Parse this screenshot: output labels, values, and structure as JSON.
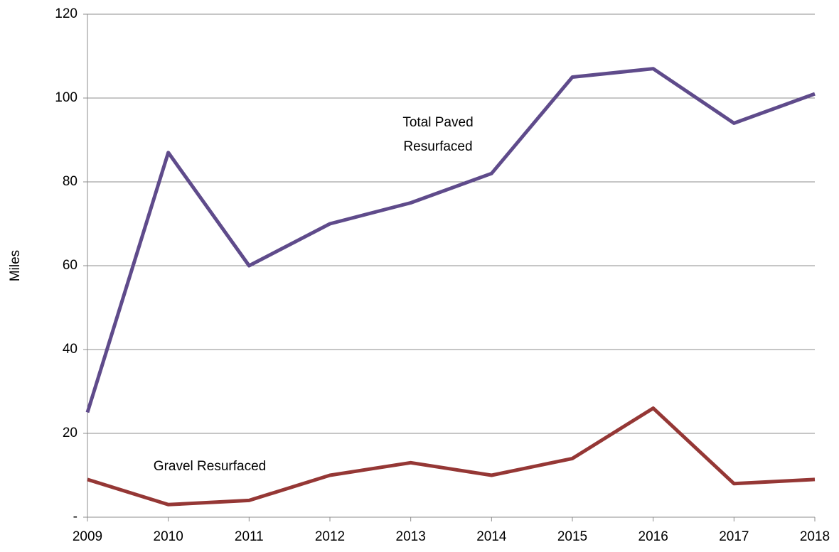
{
  "chart_data": {
    "type": "line",
    "y_label": "Miles",
    "categories": [
      "2009",
      "2010",
      "2011",
      "2012",
      "2013",
      "2014",
      "2015",
      "2016",
      "2017",
      "2018"
    ],
    "series": [
      {
        "name": "Total Paved Resurfaced",
        "color": "#5f4b8b",
        "values": [
          25,
          87,
          60,
          70,
          75,
          82,
          105,
          107,
          94,
          101
        ]
      },
      {
        "name": "Gravel Resurfaced",
        "color": "#953735",
        "values": [
          9,
          3,
          4,
          10,
          13,
          10,
          14,
          26,
          8,
          9
        ]
      }
    ],
    "ylim": [
      0,
      120
    ],
    "yticks": [
      {
        "value": 0,
        "label": "-"
      },
      20,
      40,
      60,
      80,
      100,
      120
    ],
    "grid": true
  }
}
